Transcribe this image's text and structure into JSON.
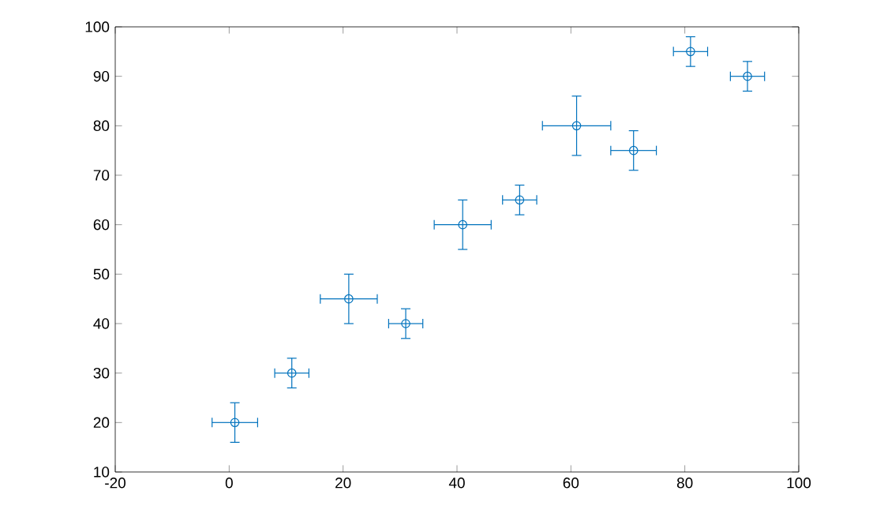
{
  "chart_data": {
    "type": "scatter",
    "marker": "circle",
    "x": [
      1,
      11,
      21,
      31,
      41,
      51,
      61,
      71,
      81,
      91
    ],
    "xlim": [
      -20,
      100
    ],
    "xticks": [
      -20,
      0,
      20,
      40,
      60,
      80,
      100
    ],
    "ylim": [
      10,
      100
    ],
    "yticks": [
      10,
      20,
      30,
      40,
      50,
      60,
      70,
      80,
      90,
      100
    ],
    "series": [
      {
        "color": "#0072bd",
        "values": [
          20,
          30,
          45,
          40,
          60,
          65,
          80,
          75,
          95,
          90
        ],
        "errors": [
          4,
          3,
          5,
          3,
          5,
          3,
          6,
          4,
          3,
          3
        ],
        "xerrors": [
          4,
          3,
          5,
          3,
          5,
          3,
          6,
          4,
          3,
          3
        ]
      }
    ]
  }
}
